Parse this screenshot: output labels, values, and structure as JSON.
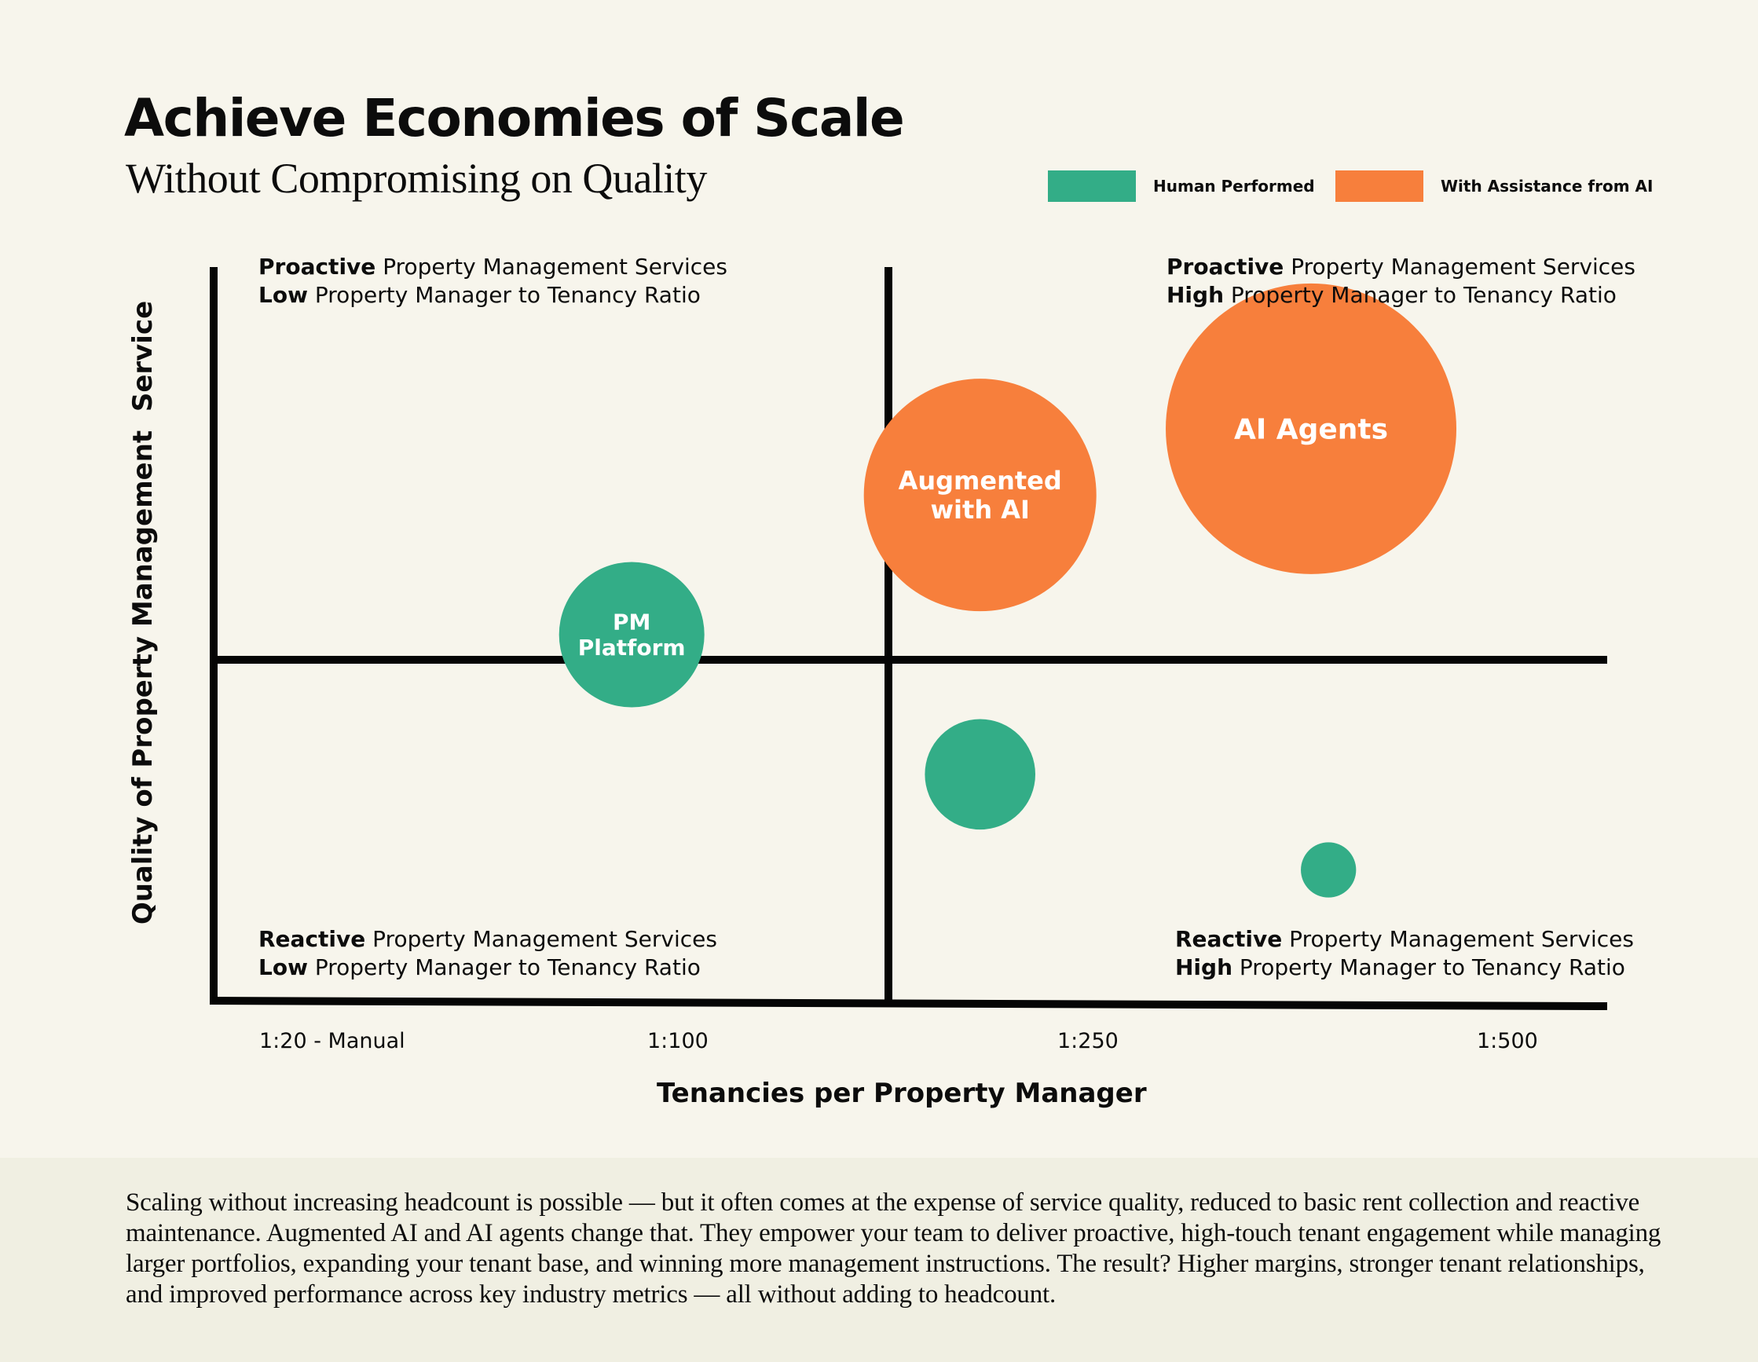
{
  "header": {
    "title": "Achieve Economies of Scale",
    "subtitle": "Without Compromising on Quality"
  },
  "legend": {
    "human": {
      "label": "Human Performed",
      "color": "#33ad87"
    },
    "ai": {
      "label": "With Assistance from AI",
      "color": "#f77f3c"
    }
  },
  "quadrants": {
    "top_left": {
      "line1_bold": "Proactive",
      "line1_rest": " Property Management Services",
      "line2_bold": "Low",
      "line2_rest": " Property Manager to Tenancy Ratio"
    },
    "top_right": {
      "line1_bold": "Proactive",
      "line1_rest": " Property Management Services",
      "line2_bold": "High",
      "line2_rest": " Property Manager to Tenancy Ratio"
    },
    "bottom_left": {
      "line1_bold": "Reactive",
      "line1_rest": " Property Management Services",
      "line2_bold": "Low",
      "line2_rest": " Property Manager to Tenancy Ratio"
    },
    "bottom_right": {
      "line1_bold": "Reactive",
      "line1_rest": " Property Management Services",
      "line2_bold": "High",
      "line2_rest": " Property Manager to Tenancy Ratio"
    }
  },
  "chart_data": {
    "type": "scatter",
    "subtype": "bubble",
    "xlabel": "Tenancies per Property Manager",
    "ylabel": "Quality of Property Management  Service",
    "x_ticks": [
      "1:20 - Manual",
      "1:100",
      "1:250",
      "1:500"
    ],
    "xlim": [
      0,
      4
    ],
    "ylim": [
      0,
      10
    ],
    "grid": false,
    "legend_position": "top-right",
    "series": [
      {
        "name": "Human Performed",
        "color": "#33ad87",
        "points": [
          {
            "x": 1.2,
            "y": 5.0,
            "size": 2.5,
            "label": "PM Platform"
          },
          {
            "x": 2.2,
            "y": 3.1,
            "size": 1.9,
            "label": ""
          },
          {
            "x": 3.2,
            "y": 1.8,
            "size": 0.95,
            "label": ""
          }
        ]
      },
      {
        "name": "With Assistance from AI",
        "color": "#f77f3c",
        "points": [
          {
            "x": 2.2,
            "y": 6.9,
            "size": 4.0,
            "label": "Augmented with AI"
          },
          {
            "x": 3.15,
            "y": 7.8,
            "size": 5.0,
            "label": "AI Agents"
          }
        ]
      }
    ]
  },
  "footer": {
    "text": "Scaling without increasing headcount is possible — but it often comes at the expense of service quality, reduced to basic rent collection and reactive maintenance. Augmented AI and AI agents change that. They empower your team to deliver proactive, high-touch tenant engagement while managing larger portfolios, expanding your tenant base, and winning more management instructions. The result? Higher margins, stronger tenant relationships, and improved performance across key industry metrics — all without adding to headcount."
  }
}
